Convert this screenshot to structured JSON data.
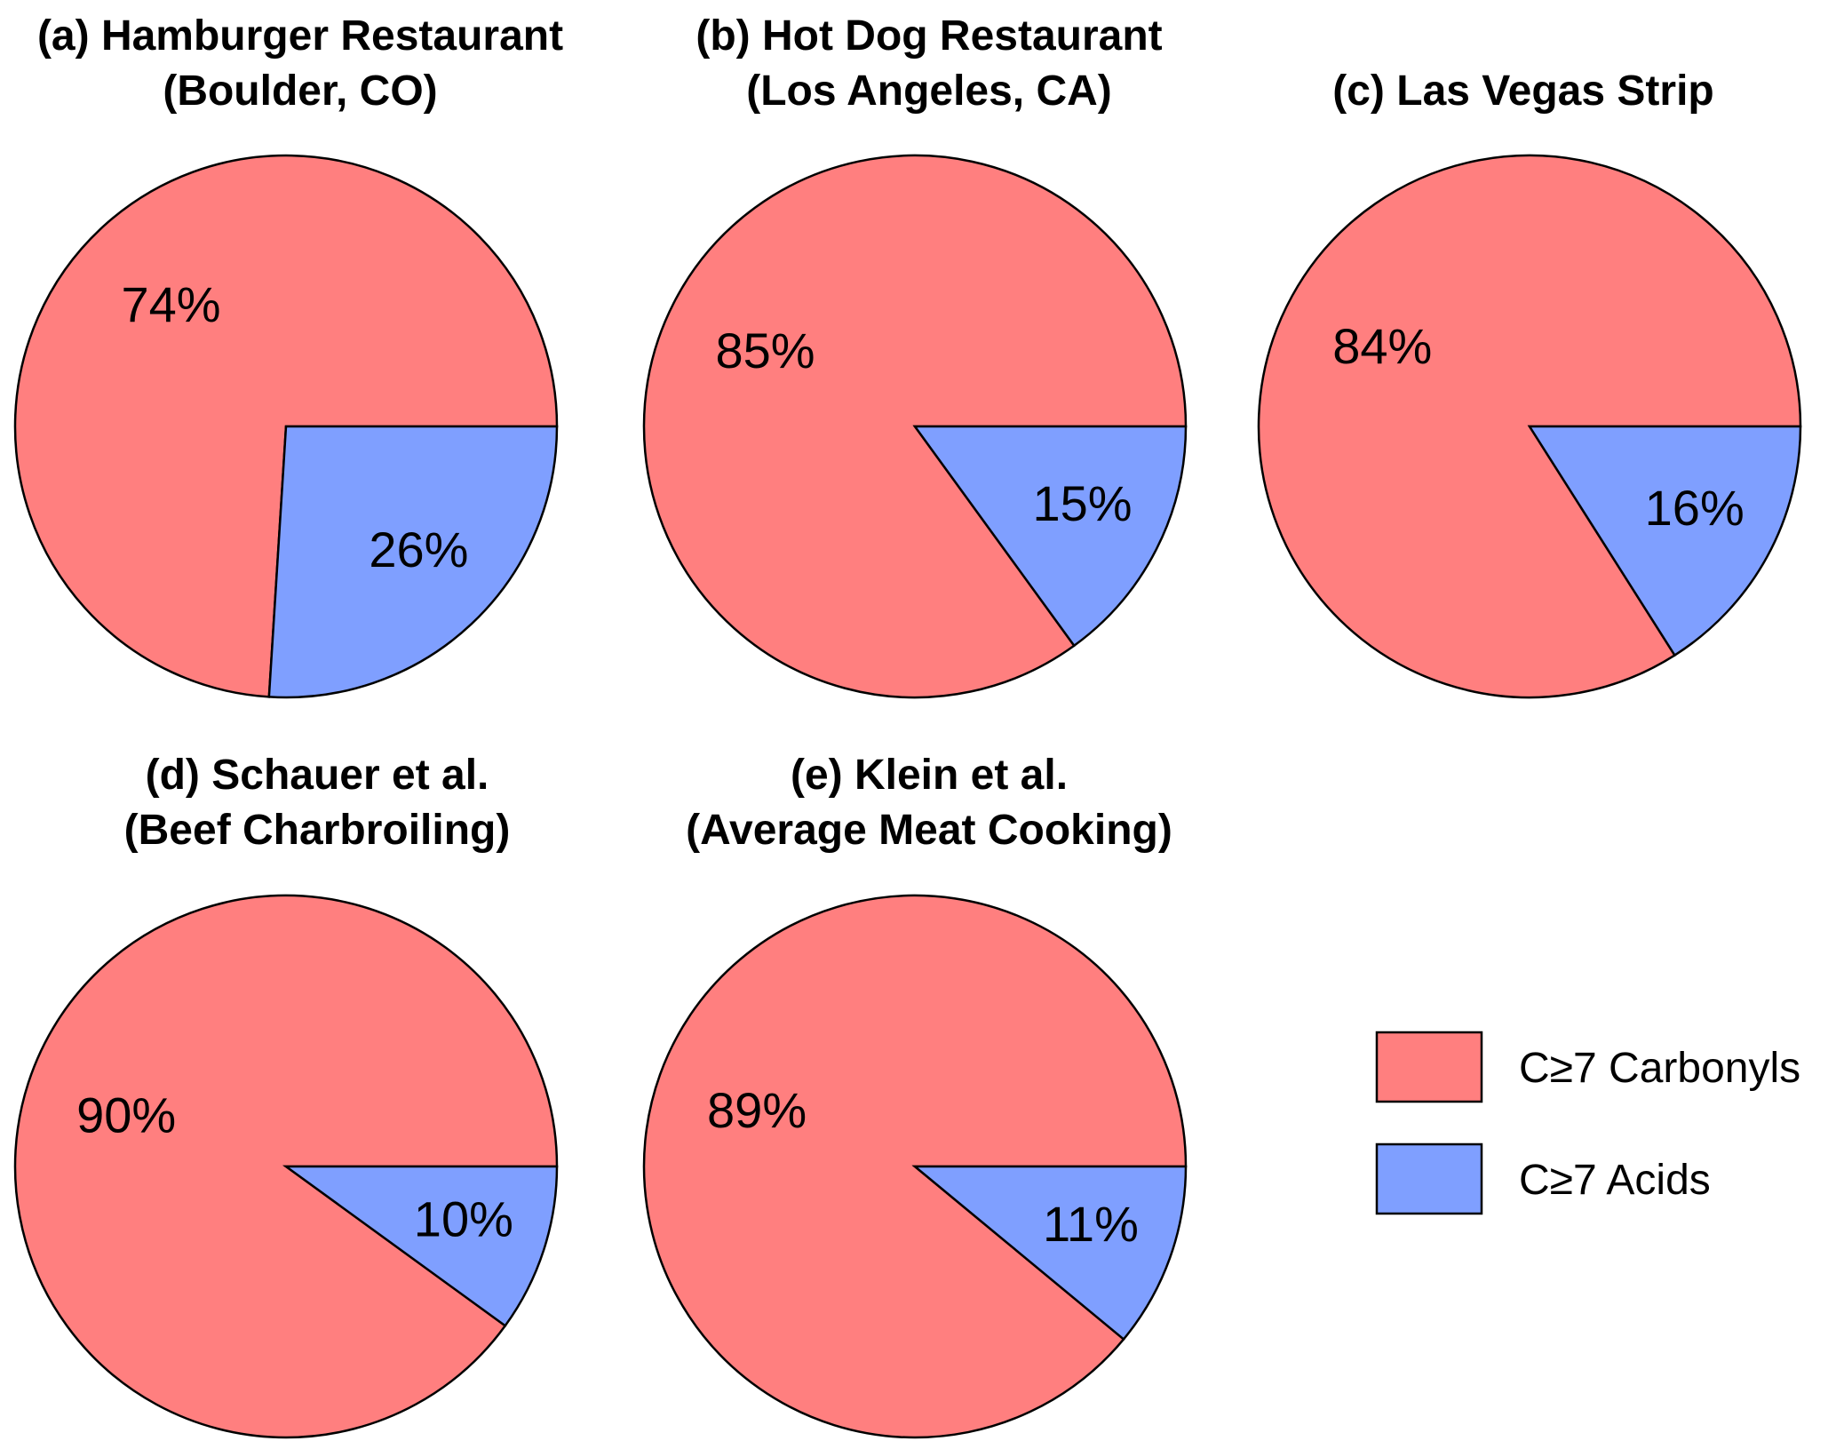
{
  "colors": {
    "carbonyls": "#FF7F7F",
    "acids": "#7F9FFF"
  },
  "legend": {
    "entries": [
      {
        "label": "C≥7 Carbonyls",
        "color_key": "carbonyls"
      },
      {
        "label": "C≥7 Acids",
        "color_key": "acids"
      }
    ]
  },
  "chart_data": [
    {
      "type": "pie",
      "title": [
        "(a) Hamburger Restaurant",
        "(Boulder, CO)"
      ],
      "slices": [
        {
          "name": "C≥7 Carbonyls",
          "value": 74,
          "label": "74%",
          "color_key": "carbonyls"
        },
        {
          "name": "C≥7 Acids",
          "value": 26,
          "label": "26%",
          "color_key": "acids"
        }
      ]
    },
    {
      "type": "pie",
      "title": [
        "(b) Hot Dog Restaurant",
        "(Los Angeles, CA)"
      ],
      "slices": [
        {
          "name": "C≥7 Carbonyls",
          "value": 85,
          "label": "85%",
          "color_key": "carbonyls"
        },
        {
          "name": "C≥7 Acids",
          "value": 15,
          "label": "15%",
          "color_key": "acids"
        }
      ]
    },
    {
      "type": "pie",
      "title": [
        "(c) Las Vegas Strip"
      ],
      "slices": [
        {
          "name": "C≥7 Carbonyls",
          "value": 84,
          "label": "84%",
          "color_key": "carbonyls"
        },
        {
          "name": "C≥7 Acids",
          "value": 16,
          "label": "16%",
          "color_key": "acids"
        }
      ]
    },
    {
      "type": "pie",
      "title": [
        "(d) Schauer et al.",
        "(Beef Charbroiling)"
      ],
      "slices": [
        {
          "name": "C≥7 Carbonyls",
          "value": 90,
          "label": "90%",
          "color_key": "carbonyls"
        },
        {
          "name": "C≥7 Acids",
          "value": 10,
          "label": "10%",
          "color_key": "acids"
        }
      ]
    },
    {
      "type": "pie",
      "title": [
        "(e) Klein et al.",
        "(Average Meat Cooking)"
      ],
      "slices": [
        {
          "name": "C≥7 Carbonyls",
          "value": 89,
          "label": "89%",
          "color_key": "carbonyls"
        },
        {
          "name": "C≥7 Acids",
          "value": 11,
          "label": "11%",
          "color_key": "acids"
        }
      ]
    }
  ]
}
